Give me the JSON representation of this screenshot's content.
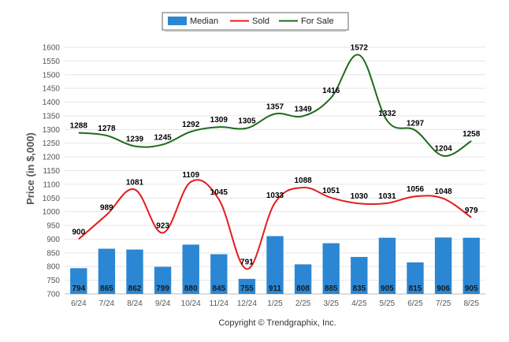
{
  "chart_data": {
    "type": "bar",
    "title": "",
    "xlabel": "",
    "ylabel": "Price (in $,000)",
    "ylim": [
      700,
      1600
    ],
    "yticks": [
      700,
      750,
      800,
      850,
      900,
      950,
      1000,
      1050,
      1100,
      1150,
      1200,
      1250,
      1300,
      1350,
      1400,
      1450,
      1500,
      1550,
      1600
    ],
    "grid": true,
    "legend": "top-center",
    "categories": [
      "6/24",
      "7/24",
      "8/24",
      "9/24",
      "10/24",
      "11/24",
      "12/24",
      "1/25",
      "2/25",
      "3/25",
      "4/25",
      "5/25",
      "6/25",
      "7/25",
      "8/25"
    ],
    "series": [
      {
        "name": "Median",
        "type": "bar",
        "color": "#2b87d3",
        "values": [
          794,
          865,
          862,
          799,
          880,
          845,
          755,
          911,
          808,
          885,
          835,
          905,
          815,
          906,
          905
        ]
      },
      {
        "name": "Sold",
        "type": "line",
        "color": "#e31c1c",
        "values": [
          900,
          989,
          1081,
          923,
          1109,
          1045,
          791,
          1033,
          1088,
          1051,
          1030,
          1031,
          1056,
          1048,
          979
        ]
      },
      {
        "name": "For Sale",
        "type": "line",
        "color": "#1e6b1e",
        "values": [
          1288,
          1278,
          1239,
          1245,
          1292,
          1309,
          1305,
          1357,
          1349,
          1416,
          1572,
          1332,
          1297,
          1204,
          1258
        ]
      }
    ],
    "copyright": "Copyright © Trendgraphix, Inc."
  }
}
